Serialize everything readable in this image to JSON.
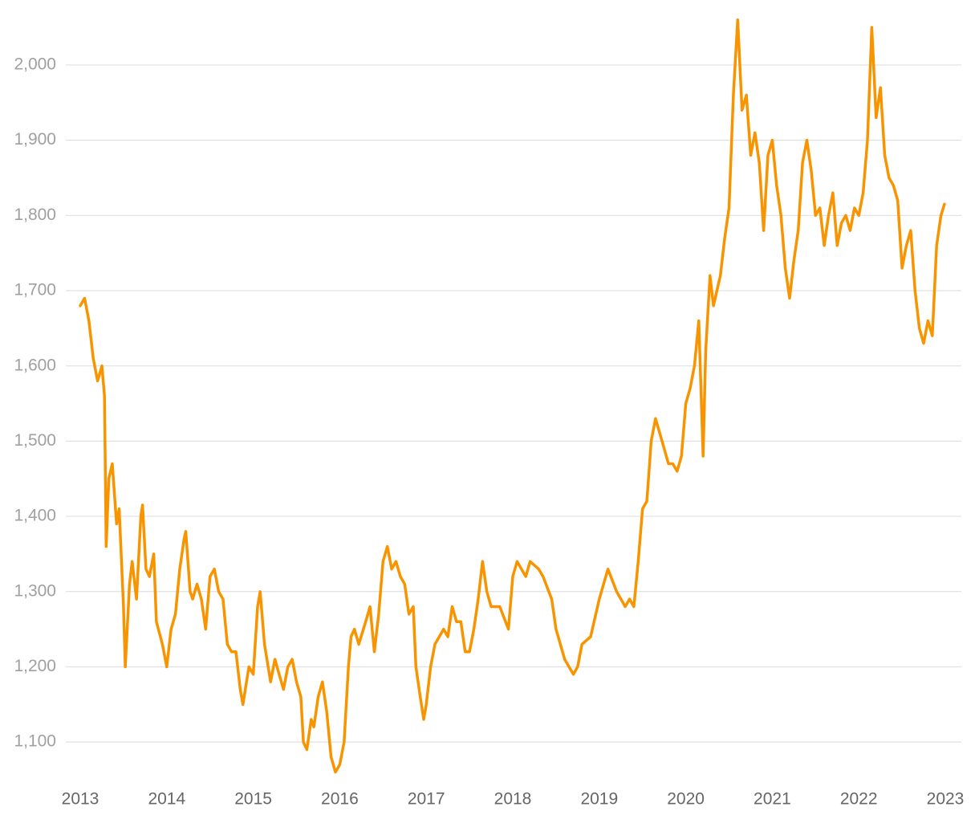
{
  "chart_data": {
    "type": "line",
    "color": "#f79400",
    "grid": true,
    "xlim": [
      2013,
      2023
    ],
    "xticks": [
      2013,
      2014,
      2015,
      2016,
      2017,
      2018,
      2019,
      2020,
      2021,
      2022,
      2023
    ],
    "ylim": [
      1050,
      2080
    ],
    "yticks": [
      {
        "value": 1100,
        "label": "1,100"
      },
      {
        "value": 1200,
        "label": "1,200"
      },
      {
        "value": 1300,
        "label": "1,300"
      },
      {
        "value": 1400,
        "label": "1,400"
      },
      {
        "value": 1500,
        "label": "1,500"
      },
      {
        "value": 1600,
        "label": "1,600"
      },
      {
        "value": 1700,
        "label": "1,700"
      },
      {
        "value": 1800,
        "label": "1,800"
      },
      {
        "value": 1900,
        "label": "1,900"
      },
      {
        "value": 2000,
        "label": "2,000"
      }
    ],
    "x": [
      2013.0,
      2013.05,
      2013.1,
      2013.15,
      2013.2,
      2013.25,
      2013.28,
      2013.3,
      2013.33,
      2013.37,
      2013.42,
      2013.45,
      2013.5,
      2013.52,
      2013.57,
      2013.6,
      2013.65,
      2013.7,
      2013.72,
      2013.76,
      2013.8,
      2013.85,
      2013.88,
      2013.95,
      2014.0,
      2014.05,
      2014.1,
      2014.15,
      2014.2,
      2014.22,
      2014.27,
      2014.3,
      2014.35,
      2014.4,
      2014.45,
      2014.5,
      2014.55,
      2014.6,
      2014.65,
      2014.7,
      2014.75,
      2014.8,
      2014.85,
      2014.88,
      2014.95,
      2015.0,
      2015.05,
      2015.08,
      2015.13,
      2015.2,
      2015.25,
      2015.3,
      2015.35,
      2015.4,
      2015.45,
      2015.5,
      2015.55,
      2015.58,
      2015.62,
      2015.67,
      2015.7,
      2015.75,
      2015.8,
      2015.85,
      2015.9,
      2015.95,
      2016.0,
      2016.05,
      2016.1,
      2016.13,
      2016.17,
      2016.22,
      2016.3,
      2016.35,
      2016.4,
      2016.45,
      2016.5,
      2016.55,
      2016.6,
      2016.65,
      2016.7,
      2016.75,
      2016.8,
      2016.85,
      2016.88,
      2016.93,
      2016.97,
      2017.0,
      2017.05,
      2017.1,
      2017.15,
      2017.2,
      2017.25,
      2017.3,
      2017.35,
      2017.4,
      2017.45,
      2017.5,
      2017.55,
      2017.6,
      2017.65,
      2017.7,
      2017.75,
      2017.8,
      2017.85,
      2017.95,
      2018.0,
      2018.05,
      2018.1,
      2018.15,
      2018.2,
      2018.3,
      2018.35,
      2018.45,
      2018.5,
      2018.55,
      2018.6,
      2018.65,
      2018.7,
      2018.75,
      2018.8,
      2018.9,
      2019.0,
      2019.05,
      2019.1,
      2019.2,
      2019.3,
      2019.35,
      2019.4,
      2019.45,
      2019.5,
      2019.55,
      2019.6,
      2019.65,
      2019.7,
      2019.75,
      2019.8,
      2019.85,
      2019.9,
      2019.95,
      2020.0,
      2020.05,
      2020.1,
      2020.15,
      2020.2,
      2020.23,
      2020.28,
      2020.32,
      2020.4,
      2020.45,
      2020.5,
      2020.55,
      2020.6,
      2020.65,
      2020.7,
      2020.75,
      2020.8,
      2020.85,
      2020.9,
      2020.95,
      2021.0,
      2021.05,
      2021.1,
      2021.15,
      2021.2,
      2021.25,
      2021.3,
      2021.35,
      2021.4,
      2021.45,
      2021.5,
      2021.55,
      2021.6,
      2021.65,
      2021.7,
      2021.75,
      2021.8,
      2021.85,
      2021.9,
      2021.95,
      2022.0,
      2022.05,
      2022.1,
      2022.15,
      2022.2,
      2022.25,
      2022.3,
      2022.35,
      2022.4,
      2022.45,
      2022.5,
      2022.55,
      2022.6,
      2022.65,
      2022.7,
      2022.75,
      2022.8,
      2022.85,
      2022.9,
      2022.95,
      2022.99
    ],
    "values": [
      1680,
      1690,
      1660,
      1610,
      1580,
      1600,
      1560,
      1360,
      1450,
      1470,
      1390,
      1410,
      1280,
      1200,
      1310,
      1340,
      1290,
      1400,
      1415,
      1330,
      1320,
      1350,
      1260,
      1230,
      1200,
      1250,
      1270,
      1330,
      1370,
      1380,
      1300,
      1290,
      1310,
      1290,
      1250,
      1320,
      1330,
      1300,
      1290,
      1230,
      1220,
      1220,
      1170,
      1150,
      1200,
      1190,
      1280,
      1300,
      1230,
      1180,
      1210,
      1190,
      1170,
      1200,
      1210,
      1180,
      1160,
      1100,
      1090,
      1130,
      1120,
      1160,
      1180,
      1140,
      1080,
      1060,
      1070,
      1100,
      1200,
      1240,
      1250,
      1230,
      1260,
      1280,
      1220,
      1270,
      1340,
      1360,
      1330,
      1340,
      1320,
      1310,
      1270,
      1280,
      1200,
      1160,
      1130,
      1150,
      1200,
      1230,
      1240,
      1250,
      1240,
      1280,
      1260,
      1260,
      1220,
      1220,
      1250,
      1290,
      1340,
      1300,
      1280,
      1280,
      1280,
      1250,
      1320,
      1340,
      1330,
      1320,
      1340,
      1330,
      1320,
      1290,
      1250,
      1230,
      1210,
      1200,
      1190,
      1200,
      1230,
      1240,
      1290,
      1310,
      1330,
      1300,
      1280,
      1290,
      1280,
      1340,
      1410,
      1420,
      1500,
      1530,
      1510,
      1490,
      1470,
      1470,
      1460,
      1480,
      1550,
      1570,
      1600,
      1660,
      1480,
      1620,
      1720,
      1680,
      1720,
      1770,
      1810,
      1960,
      2060,
      1940,
      1960,
      1880,
      1910,
      1870,
      1780,
      1880,
      1900,
      1840,
      1800,
      1730,
      1690,
      1740,
      1780,
      1870,
      1900,
      1860,
      1800,
      1810,
      1760,
      1800,
      1830,
      1760,
      1790,
      1800,
      1780,
      1810,
      1800,
      1830,
      1900,
      2050,
      1930,
      1970,
      1880,
      1850,
      1840,
      1820,
      1730,
      1760,
      1780,
      1700,
      1650,
      1630,
      1660,
      1640,
      1760,
      1800,
      1815
    ]
  }
}
